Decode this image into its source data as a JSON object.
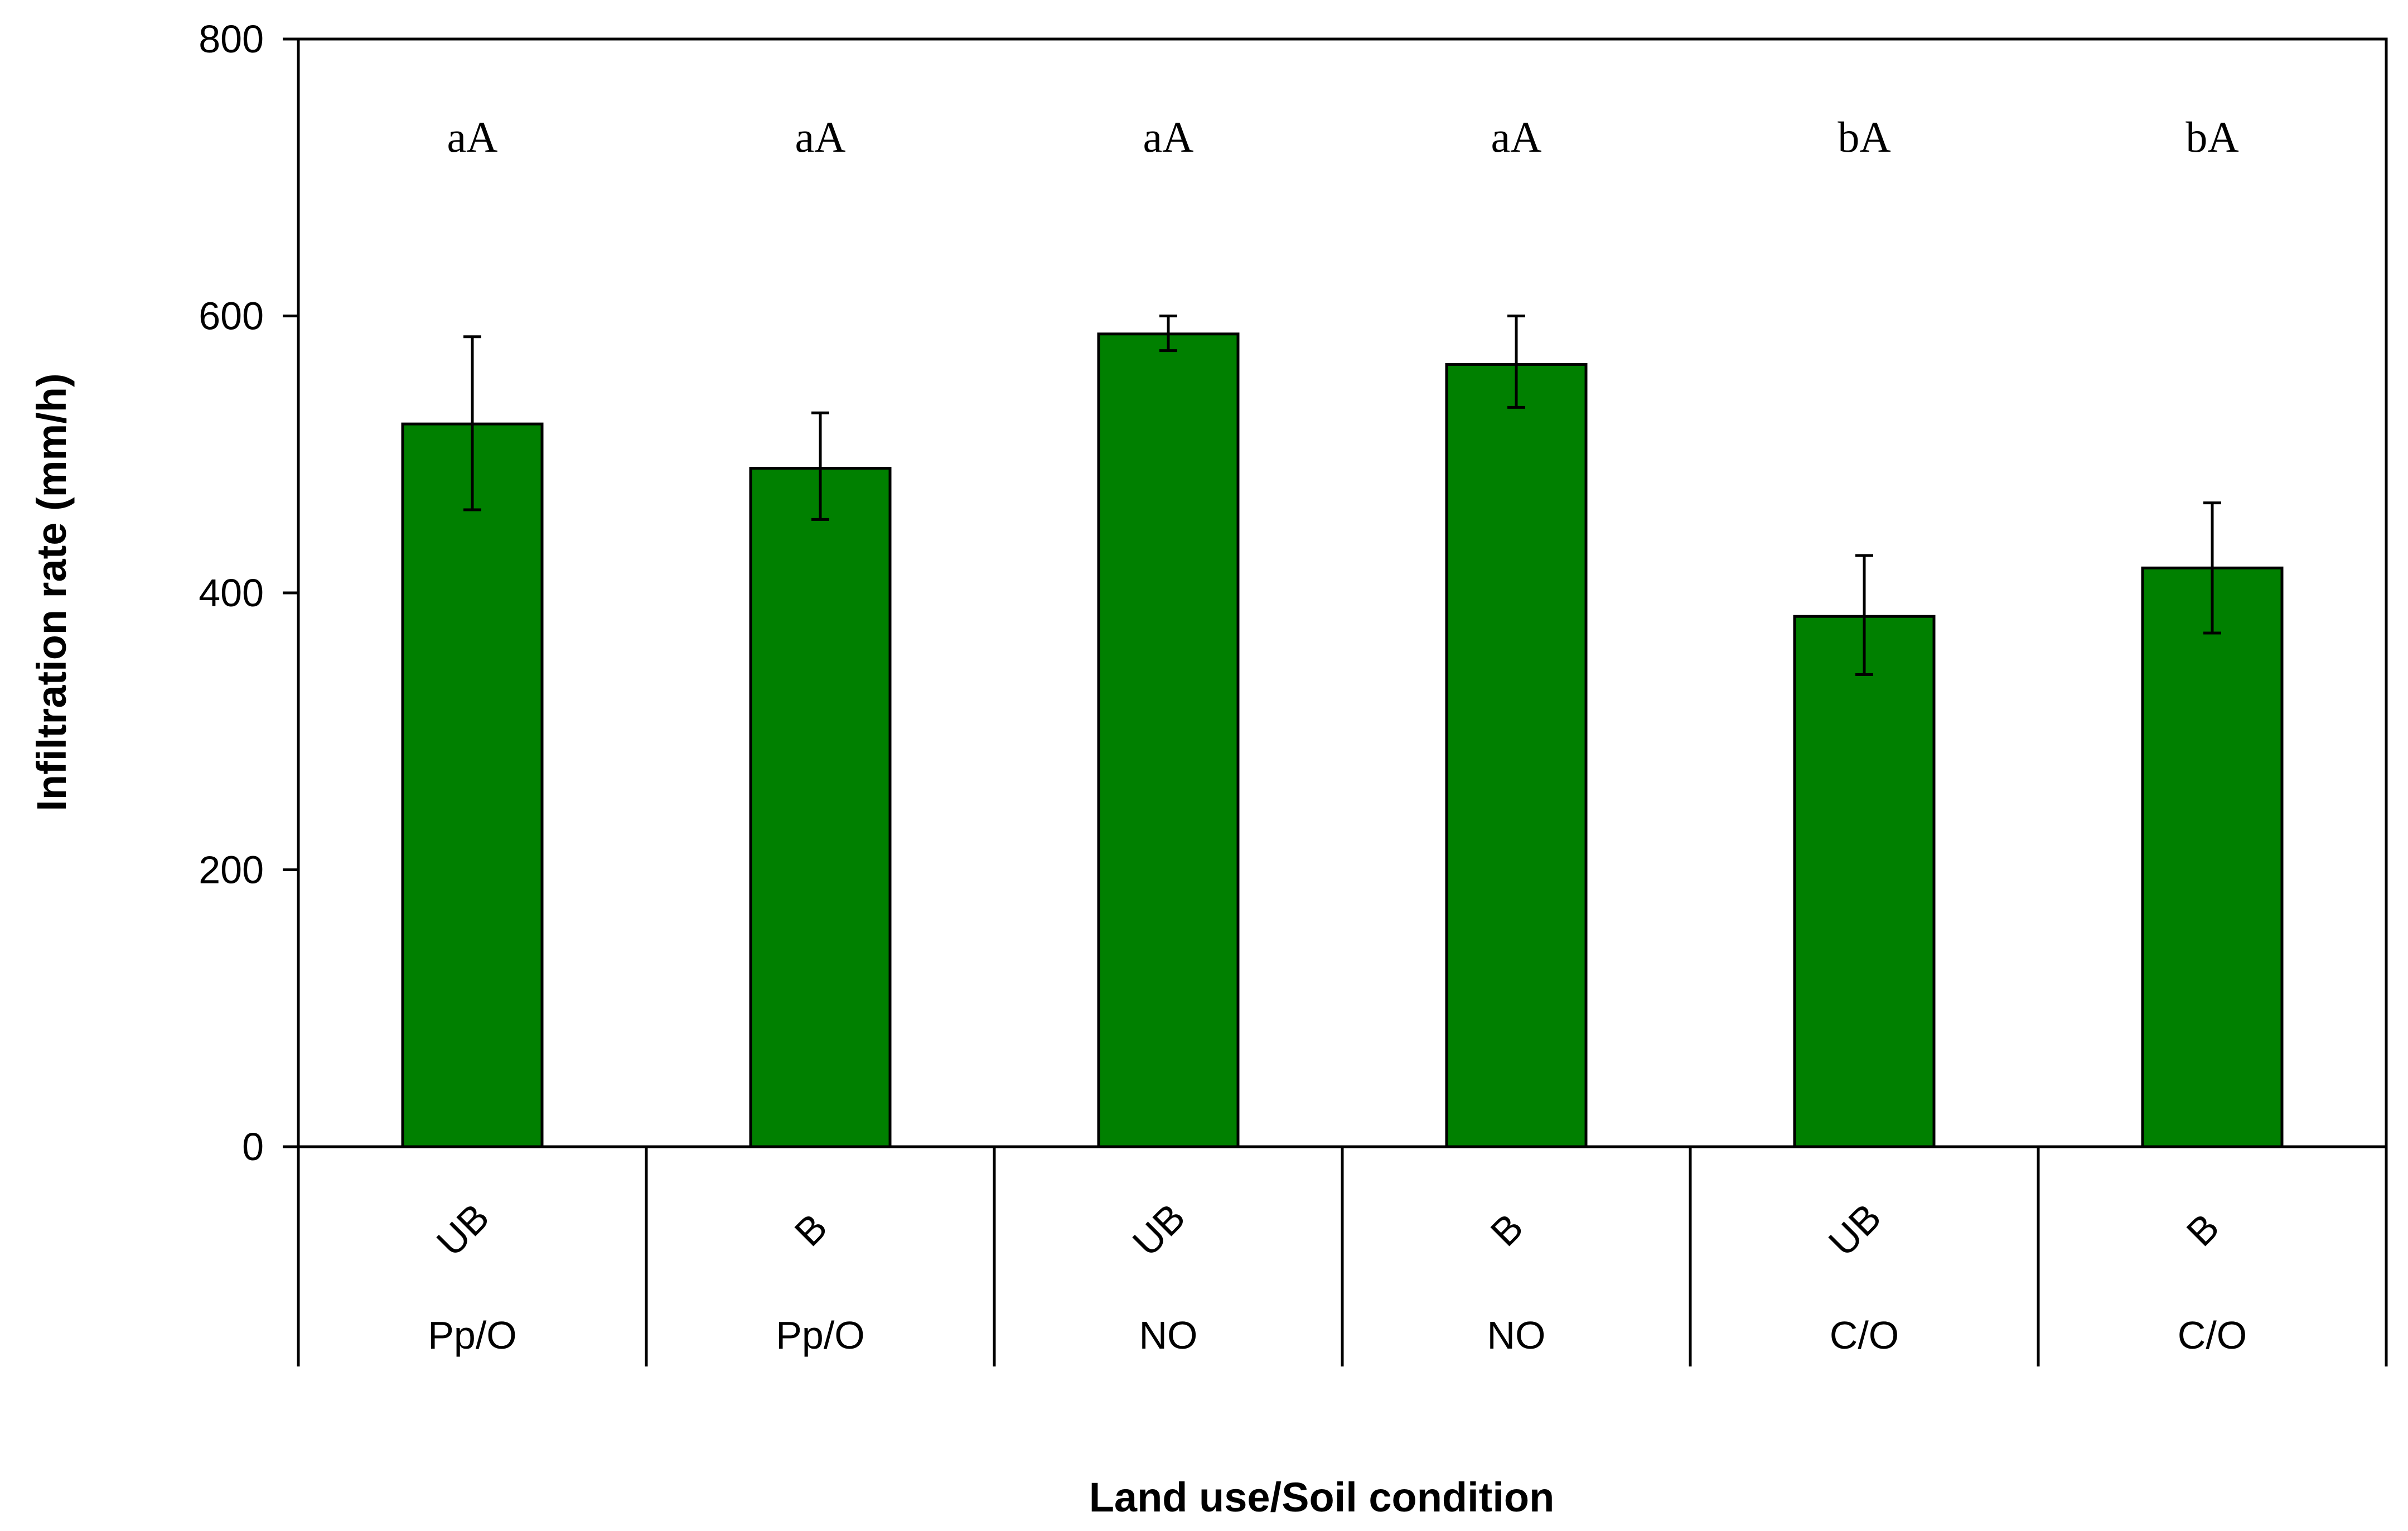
{
  "chart_data": {
    "type": "bar",
    "ylabel": "Infiltration rate (mm/h)",
    "xlabel": "Land use/Soil condition",
    "ylim": [
      0,
      800
    ],
    "yticks": [
      0,
      200,
      400,
      600,
      800
    ],
    "ytick_labels": [
      "0",
      "200",
      "400",
      "600",
      "800"
    ],
    "bar_color": "#008000",
    "categories": [
      {
        "condition": "UB",
        "land_use": "Pp/O",
        "value": 522,
        "err_low": 460,
        "err_high": 585,
        "letters": "aA"
      },
      {
        "condition": "B",
        "land_use": "Pp/O",
        "value": 490,
        "err_low": 453,
        "err_high": 530,
        "letters": "aA"
      },
      {
        "condition": "UB",
        "land_use": "NO",
        "value": 587,
        "err_low": 575,
        "err_high": 600,
        "letters": "aA"
      },
      {
        "condition": "B",
        "land_use": "NO",
        "value": 565,
        "err_low": 534,
        "err_high": 600,
        "letters": "aA"
      },
      {
        "condition": "UB",
        "land_use": "C/O",
        "value": 383,
        "err_low": 341,
        "err_high": 427,
        "letters": "bA"
      },
      {
        "condition": "B",
        "land_use": "C/O",
        "value": 418,
        "err_low": 371,
        "err_high": 465,
        "letters": "bA"
      }
    ]
  }
}
